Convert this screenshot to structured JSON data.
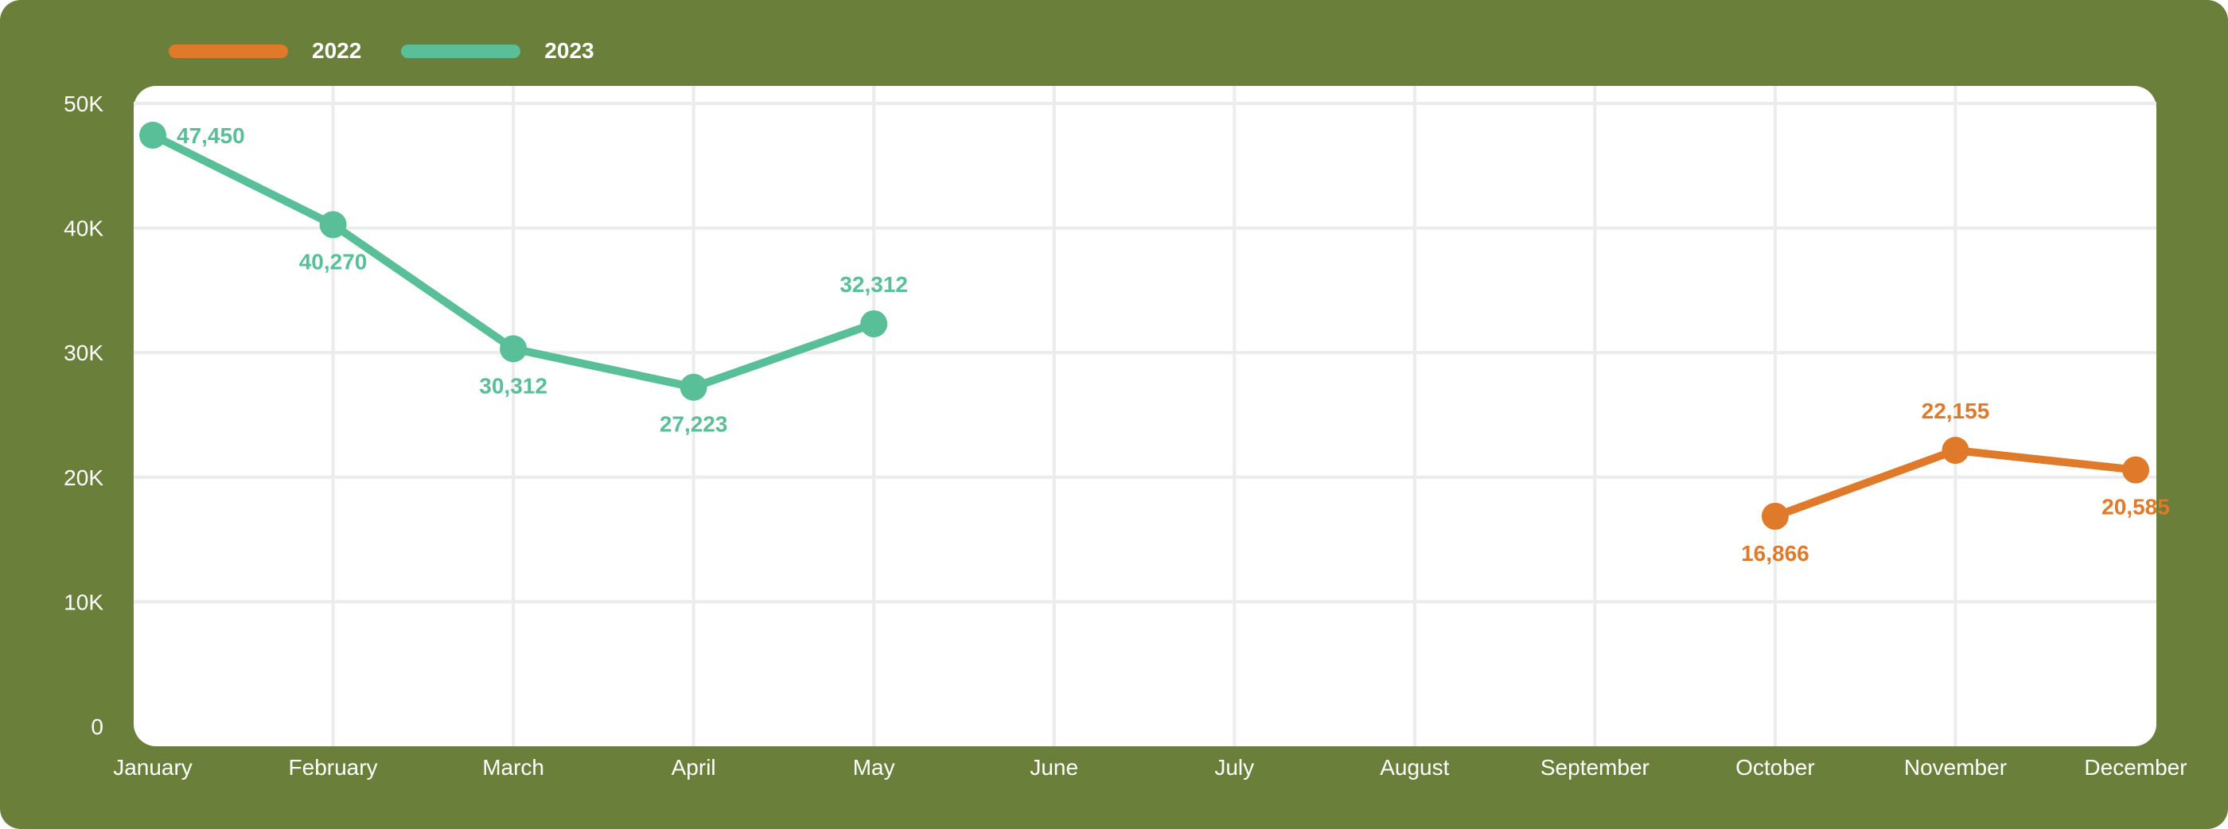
{
  "chart_data": {
    "type": "line",
    "categories": [
      "January",
      "February",
      "March",
      "April",
      "May",
      "June",
      "July",
      "August",
      "September",
      "October",
      "November",
      "December"
    ],
    "series": [
      {
        "name": "2022",
        "color": "#df7a2a",
        "values": [
          null,
          null,
          null,
          null,
          null,
          null,
          null,
          null,
          null,
          16866,
          22155,
          20585
        ],
        "labels": [
          "",
          "",
          "",
          "",
          "",
          "",
          "",
          "",
          "",
          "16,866",
          "22,155",
          "20,585"
        ]
      },
      {
        "name": "2023",
        "color": "#58bf98",
        "values": [
          47450,
          40270,
          30312,
          27223,
          32312,
          null,
          null,
          null,
          null,
          null,
          null,
          null
        ],
        "labels": [
          "47,450",
          "40,270",
          "30,312",
          "27,223",
          "32,312",
          "",
          "",
          "",
          "",
          "",
          "",
          ""
        ]
      }
    ],
    "yticks": [
      0,
      10000,
      20000,
      30000,
      40000,
      50000
    ],
    "ytick_labels": [
      "0",
      "10K",
      "20K",
      "30K",
      "40K",
      "50K"
    ],
    "ylim": [
      0,
      50000
    ],
    "grid": true,
    "legend_position": "top-left",
    "xlabel": "",
    "ylabel": "",
    "title": ""
  },
  "colors": {
    "frame": "#6a7f39",
    "plot_background": "#ffffff",
    "grid": "#ececec",
    "axis_text": "#ffffff"
  }
}
